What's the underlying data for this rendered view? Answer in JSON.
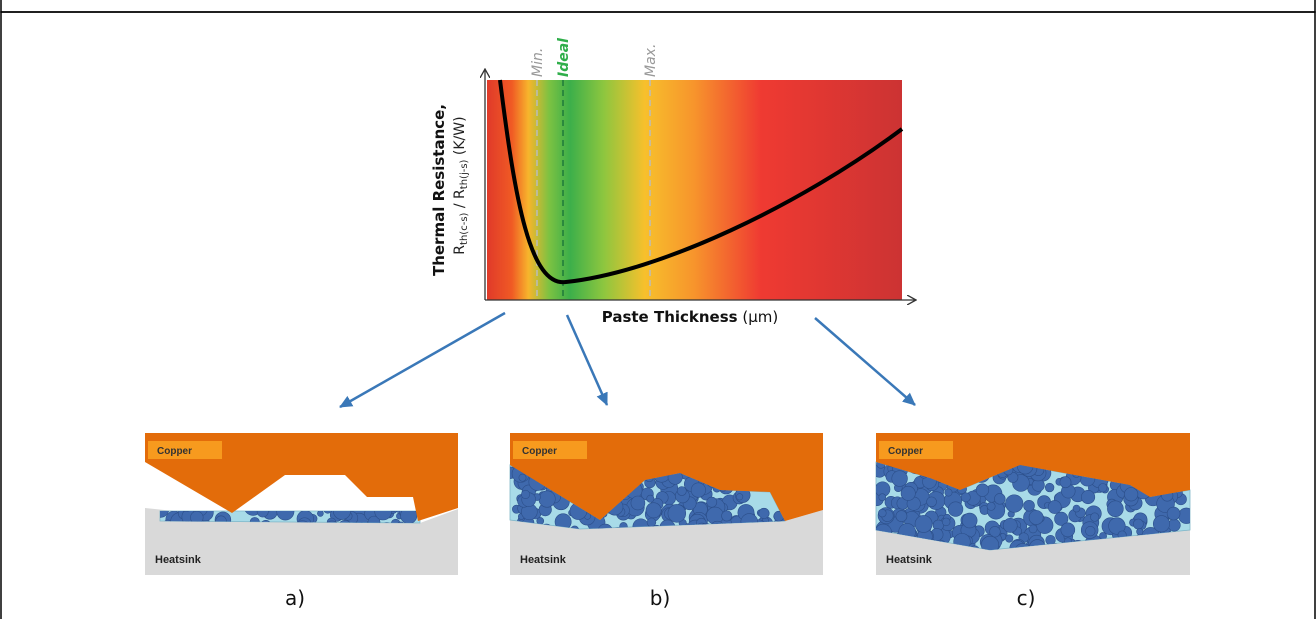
{
  "chart": {
    "markers": [
      "Min.",
      "Ideal",
      "Max."
    ],
    "y_axis_title": "Thermal Resistance,",
    "y_axis_subtitle": [
      "R",
      "th(c-s)",
      " / R",
      "th(j-s)",
      " (K/W)"
    ],
    "x_axis_title": {
      "bold": "Paste Thickness",
      "unit": " (µm)"
    }
  },
  "panels": [
    {
      "copper": "Copper",
      "heatsink": "Heatsink",
      "caption": "a)"
    },
    {
      "copper": "Copper",
      "heatsink": "Heatsink",
      "caption": "b)"
    },
    {
      "copper": "Copper",
      "heatsink": "Heatsink",
      "caption": "c)"
    }
  ]
}
